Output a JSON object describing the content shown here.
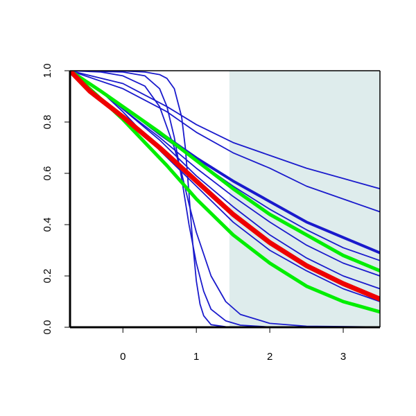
{
  "chart_data": {
    "type": "line",
    "title": "",
    "xlabel": "",
    "ylabel": "",
    "xlim": [
      -0.72,
      3.5
    ],
    "ylim": [
      0.0,
      1.0
    ],
    "x_ticks": [
      0,
      1,
      2,
      3
    ],
    "y_ticks": [
      0.0,
      0.2,
      0.4,
      0.6,
      0.8,
      1.0
    ],
    "x_tick_labels": [
      "0",
      "1",
      "2",
      "3"
    ],
    "y_tick_labels": [
      "0.0",
      "0.2",
      "0.4",
      "0.6",
      "0.8",
      "1.0"
    ],
    "shaded_region": {
      "x_start": 1.45,
      "x_end": 3.5,
      "color": "#deecec"
    },
    "grid": false,
    "colors": {
      "blue": "#1a1acc",
      "green": "#00ee00",
      "red": "#ee0000"
    },
    "series": [
      {
        "color": "blue",
        "width": 1.8,
        "points": [
          [
            -0.72,
            1.0
          ],
          [
            0.0,
            0.95
          ],
          [
            0.6,
            0.86
          ],
          [
            1.0,
            0.79
          ],
          [
            1.5,
            0.72
          ],
          [
            2.0,
            0.67
          ],
          [
            2.5,
            0.62
          ],
          [
            3.0,
            0.58
          ],
          [
            3.5,
            0.54
          ]
        ]
      },
      {
        "color": "blue",
        "width": 1.8,
        "points": [
          [
            -0.72,
            1.0
          ],
          [
            0.0,
            0.93
          ],
          [
            0.6,
            0.84
          ],
          [
            1.0,
            0.76
          ],
          [
            1.5,
            0.68
          ],
          [
            2.0,
            0.62
          ],
          [
            2.5,
            0.55
          ],
          [
            3.0,
            0.5
          ],
          [
            3.5,
            0.45
          ]
        ]
      },
      {
        "color": "blue",
        "width": 4.0,
        "points": [
          [
            -0.72,
            1.0
          ],
          [
            -0.3,
            0.92
          ],
          [
            0.0,
            0.86
          ],
          [
            0.5,
            0.76
          ],
          [
            1.0,
            0.66
          ],
          [
            1.5,
            0.57
          ],
          [
            2.0,
            0.49
          ],
          [
            2.5,
            0.41
          ],
          [
            3.0,
            0.35
          ],
          [
            3.5,
            0.29
          ]
        ]
      },
      {
        "color": "blue",
        "width": 1.8,
        "points": [
          [
            -0.72,
            1.0
          ],
          [
            -0.3,
            0.92
          ],
          [
            0.0,
            0.86
          ],
          [
            0.5,
            0.75
          ],
          [
            1.0,
            0.65
          ],
          [
            1.5,
            0.55
          ],
          [
            2.0,
            0.46
          ],
          [
            2.5,
            0.38
          ],
          [
            3.0,
            0.31
          ],
          [
            3.5,
            0.26
          ]
        ]
      },
      {
        "color": "blue",
        "width": 1.8,
        "points": [
          [
            -0.72,
            1.0
          ],
          [
            -0.3,
            0.92
          ],
          [
            0.0,
            0.85
          ],
          [
            0.5,
            0.74
          ],
          [
            1.0,
            0.62
          ],
          [
            1.5,
            0.51
          ],
          [
            2.0,
            0.41
          ],
          [
            2.5,
            0.32
          ],
          [
            3.0,
            0.25
          ],
          [
            3.5,
            0.2
          ]
        ]
      },
      {
        "color": "blue",
        "width": 1.8,
        "points": [
          [
            -0.72,
            1.0
          ],
          [
            -0.3,
            0.92
          ],
          [
            0.0,
            0.85
          ],
          [
            0.5,
            0.73
          ],
          [
            1.0,
            0.59
          ],
          [
            1.5,
            0.47
          ],
          [
            2.0,
            0.36
          ],
          [
            2.5,
            0.27
          ],
          [
            3.0,
            0.2
          ],
          [
            3.5,
            0.15
          ]
        ]
      },
      {
        "color": "blue",
        "width": 1.8,
        "points": [
          [
            -0.72,
            1.0
          ],
          [
            -0.3,
            0.92
          ],
          [
            0.0,
            0.84
          ],
          [
            0.5,
            0.69
          ],
          [
            1.0,
            0.55
          ],
          [
            1.5,
            0.41
          ],
          [
            2.0,
            0.3
          ],
          [
            2.5,
            0.22
          ],
          [
            3.0,
            0.15
          ],
          [
            3.5,
            0.1
          ]
        ]
      },
      {
        "color": "blue",
        "width": 1.8,
        "points": [
          [
            -0.72,
            1.0
          ],
          [
            -0.3,
            0.995
          ],
          [
            0.0,
            0.98
          ],
          [
            0.3,
            0.94
          ],
          [
            0.5,
            0.86
          ],
          [
            0.7,
            0.7
          ],
          [
            0.8,
            0.6
          ],
          [
            0.9,
            0.48
          ],
          [
            1.0,
            0.37
          ],
          [
            1.2,
            0.2
          ],
          [
            1.4,
            0.1
          ],
          [
            1.6,
            0.05
          ],
          [
            2.0,
            0.015
          ],
          [
            2.5,
            0.004
          ],
          [
            3.5,
            0.001
          ]
        ]
      },
      {
        "color": "blue",
        "width": 1.8,
        "points": [
          [
            -0.72,
            1.0
          ],
          [
            0.0,
            0.995
          ],
          [
            0.3,
            0.98
          ],
          [
            0.5,
            0.93
          ],
          [
            0.6,
            0.86
          ],
          [
            0.7,
            0.74
          ],
          [
            0.8,
            0.58
          ],
          [
            0.9,
            0.4
          ],
          [
            1.0,
            0.25
          ],
          [
            1.1,
            0.14
          ],
          [
            1.2,
            0.07
          ],
          [
            1.4,
            0.025
          ],
          [
            1.6,
            0.008
          ],
          [
            2.0,
            0.001
          ],
          [
            3.5,
            0.0
          ]
        ]
      },
      {
        "color": "blue",
        "width": 1.8,
        "points": [
          [
            -0.72,
            1.0
          ],
          [
            0.0,
            0.999
          ],
          [
            0.3,
            0.995
          ],
          [
            0.5,
            0.985
          ],
          [
            0.6,
            0.97
          ],
          [
            0.7,
            0.93
          ],
          [
            0.8,
            0.82
          ],
          [
            0.85,
            0.7
          ],
          [
            0.9,
            0.52
          ],
          [
            0.95,
            0.33
          ],
          [
            1.0,
            0.18
          ],
          [
            1.05,
            0.09
          ],
          [
            1.1,
            0.045
          ],
          [
            1.2,
            0.01
          ],
          [
            1.4,
            0.002
          ],
          [
            3.5,
            0.0
          ]
        ]
      },
      {
        "color": "green",
        "width": 5.0,
        "points": [
          [
            -0.72,
            1.0
          ],
          [
            -0.3,
            0.92
          ],
          [
            0.0,
            0.86
          ],
          [
            0.5,
            0.76
          ],
          [
            1.0,
            0.65
          ],
          [
            1.5,
            0.54
          ],
          [
            2.0,
            0.44
          ],
          [
            2.5,
            0.36
          ],
          [
            3.0,
            0.28
          ],
          [
            3.5,
            0.22
          ]
        ]
      },
      {
        "color": "green",
        "width": 5.0,
        "points": [
          [
            -0.72,
            1.0
          ],
          [
            -0.3,
            0.89
          ],
          [
            0.0,
            0.81
          ],
          [
            0.3,
            0.72
          ],
          [
            0.6,
            0.63
          ],
          [
            1.0,
            0.5
          ],
          [
            1.5,
            0.36
          ],
          [
            2.0,
            0.25
          ],
          [
            2.5,
            0.16
          ],
          [
            3.0,
            0.1
          ],
          [
            3.5,
            0.06
          ]
        ]
      },
      {
        "color": "red",
        "width": 7.0,
        "points": [
          [
            -0.72,
            1.0
          ],
          [
            -0.45,
            0.92
          ],
          [
            0.0,
            0.82
          ],
          [
            0.5,
            0.7
          ],
          [
            1.0,
            0.57
          ],
          [
            1.5,
            0.44
          ],
          [
            2.0,
            0.33
          ],
          [
            2.5,
            0.24
          ],
          [
            3.0,
            0.17
          ],
          [
            3.5,
            0.11
          ]
        ]
      }
    ]
  }
}
